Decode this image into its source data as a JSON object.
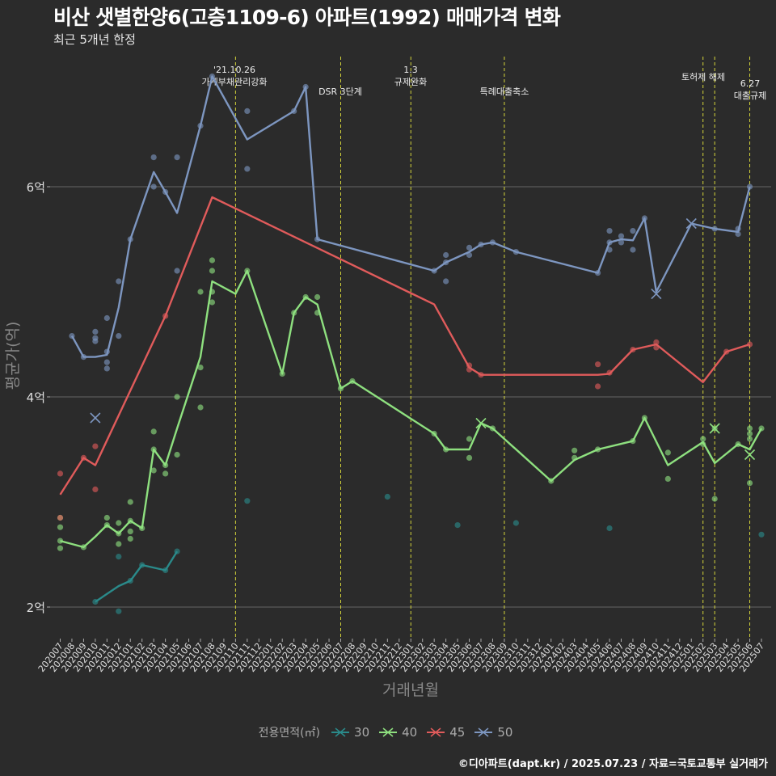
{
  "title": "비산 샛별한양6(고층1109-6) 아파트(1992) 매매가격 변화",
  "subtitle": "최근 5개년 한정",
  "caption": "©디아파트(dapt.kr) / 2025.07.23 / 자료=국토교통부 실거래가",
  "chart_data": {
    "type": "line",
    "xlabel": "거래년월",
    "ylabel": "평균가(억)",
    "ylim": [
      1.7,
      7.3
    ],
    "yticks": [
      2,
      4,
      6
    ],
    "ytick_labels": [
      "2억",
      "4억",
      "6억"
    ],
    "grid": true,
    "legend_title": "전용면적(㎡)",
    "legend_position": "bottom",
    "x": [
      "202007",
      "202008",
      "202009",
      "202010",
      "202011",
      "202012",
      "202101",
      "202102",
      "202103",
      "202104",
      "202105",
      "202106",
      "202107",
      "202108",
      "202109",
      "202110",
      "202111",
      "202112",
      "202201",
      "202202",
      "202203",
      "202204",
      "202205",
      "202206",
      "202207",
      "202208",
      "202209",
      "202210",
      "202211",
      "202212",
      "202301",
      "202302",
      "202303",
      "202304",
      "202305",
      "202306",
      "202307",
      "202308",
      "202309",
      "202310",
      "202311",
      "202312",
      "202401",
      "202402",
      "202403",
      "202404",
      "202405",
      "202406",
      "202407",
      "202408",
      "202409",
      "202410",
      "202411",
      "202412",
      "202501",
      "202502",
      "202503",
      "202504",
      "202505",
      "202506",
      "202507"
    ],
    "events": [
      {
        "x": "202110",
        "label": "'21.10.26\n가계부채관리강화"
      },
      {
        "x": "202207",
        "label": "DSR 3단계"
      },
      {
        "x": "202301",
        "label": "1.3\n규제완화"
      },
      {
        "x": "202309",
        "label": "특례대출축소"
      },
      {
        "x": "202502",
        "label": "토허제 해제"
      },
      {
        "x": "202503",
        "label": ""
      },
      {
        "x": "202506",
        "label": "6.27\n대출규제"
      }
    ],
    "series": [
      {
        "name": "30",
        "color": "#2a8a8a",
        "line": [
          [
            "202010",
            2.05
          ],
          [
            "202012",
            2.2
          ],
          [
            "202101",
            2.25
          ],
          [
            "202102",
            2.4
          ],
          [
            "202104",
            2.35
          ],
          [
            "202105",
            2.53
          ]
        ],
        "points": [
          [
            "202010",
            2.05
          ],
          [
            "202012",
            1.96
          ],
          [
            "202012",
            2.48
          ],
          [
            "202101",
            2.25
          ],
          [
            "202102",
            2.4
          ],
          [
            "202104",
            2.35
          ],
          [
            "202105",
            2.53
          ],
          [
            "202111",
            3.01
          ],
          [
            "202211",
            3.05
          ],
          [
            "202305",
            2.78
          ],
          [
            "202310",
            2.8
          ],
          [
            "202406",
            2.75
          ],
          [
            "202507",
            2.69
          ]
        ],
        "crosses": []
      },
      {
        "name": "40",
        "color": "#8ee07f",
        "line": [
          [
            "202007",
            2.63
          ],
          [
            "202009",
            2.57
          ],
          [
            "202010",
            2.67
          ],
          [
            "202011",
            2.78
          ],
          [
            "202012",
            2.7
          ],
          [
            "202101",
            2.82
          ],
          [
            "202102",
            2.75
          ],
          [
            "202103",
            3.5
          ],
          [
            "202104",
            3.35
          ],
          [
            "202105",
            3.7
          ],
          [
            "202107",
            4.38
          ],
          [
            "202108",
            5.1
          ],
          [
            "202110",
            4.98
          ],
          [
            "202111",
            5.2
          ],
          [
            "202202",
            4.22
          ],
          [
            "202203",
            4.8
          ],
          [
            "202204",
            4.95
          ],
          [
            "202205",
            4.88
          ],
          [
            "202207",
            4.08
          ],
          [
            "202208",
            4.15
          ],
          [
            "202303",
            3.65
          ],
          [
            "202304",
            3.5
          ],
          [
            "202306",
            3.5
          ],
          [
            "202307",
            3.75
          ],
          [
            "202308",
            3.7
          ],
          [
            "202401",
            3.2
          ],
          [
            "202403",
            3.4
          ],
          [
            "202405",
            3.5
          ],
          [
            "202408",
            3.58
          ],
          [
            "202409",
            3.8
          ],
          [
            "202411",
            3.35
          ],
          [
            "202502",
            3.57
          ],
          [
            "202503",
            3.37
          ],
          [
            "202505",
            3.55
          ],
          [
            "202506",
            3.5
          ],
          [
            "202507",
            3.7
          ]
        ],
        "points": [
          [
            "202007",
            2.85
          ],
          [
            "202007",
            2.76
          ],
          [
            "202007",
            2.63
          ],
          [
            "202007",
            2.56
          ],
          [
            "202009",
            2.57
          ],
          [
            "202011",
            2.85
          ],
          [
            "202011",
            2.78
          ],
          [
            "202012",
            2.8
          ],
          [
            "202012",
            2.7
          ],
          [
            "202012",
            2.6
          ],
          [
            "202101",
            3.0
          ],
          [
            "202101",
            2.82
          ],
          [
            "202101",
            2.72
          ],
          [
            "202101",
            2.65
          ],
          [
            "202102",
            2.75
          ],
          [
            "202103",
            3.67
          ],
          [
            "202103",
            3.5
          ],
          [
            "202103",
            3.3
          ],
          [
            "202104",
            3.35
          ],
          [
            "202104",
            3.27
          ],
          [
            "202105",
            4.0
          ],
          [
            "202105",
            3.45
          ],
          [
            "202107",
            5.0
          ],
          [
            "202107",
            4.28
          ],
          [
            "202107",
            3.9
          ],
          [
            "202108",
            5.3
          ],
          [
            "202108",
            5.2
          ],
          [
            "202108",
            5.0
          ],
          [
            "202108",
            4.9
          ],
          [
            "202111",
            5.2
          ],
          [
            "202202",
            4.22
          ],
          [
            "202203",
            4.8
          ],
          [
            "202204",
            4.95
          ],
          [
            "202205",
            4.95
          ],
          [
            "202205",
            4.8
          ],
          [
            "202207",
            4.08
          ],
          [
            "202208",
            4.15
          ],
          [
            "202303",
            3.65
          ],
          [
            "202304",
            3.5
          ],
          [
            "202306",
            3.6
          ],
          [
            "202306",
            3.42
          ],
          [
            "202308",
            3.7
          ],
          [
            "202401",
            3.2
          ],
          [
            "202403",
            3.42
          ],
          [
            "202403",
            3.49
          ],
          [
            "202405",
            3.5
          ],
          [
            "202408",
            3.58
          ],
          [
            "202409",
            3.8
          ],
          [
            "202411",
            3.47
          ],
          [
            "202411",
            3.22
          ],
          [
            "202502",
            3.6
          ],
          [
            "202502",
            3.55
          ],
          [
            "202503",
            3.7
          ],
          [
            "202503",
            3.03
          ],
          [
            "202505",
            3.55
          ],
          [
            "202506",
            3.7
          ],
          [
            "202506",
            3.65
          ],
          [
            "202506",
            3.6
          ],
          [
            "202506",
            3.18
          ],
          [
            "202507",
            3.7
          ]
        ],
        "crosses": [
          [
            "202307",
            3.75
          ],
          [
            "202503",
            3.7
          ],
          [
            "202506",
            3.45
          ]
        ]
      },
      {
        "name": "45",
        "color": "#e05b5b",
        "line": [
          [
            "202007",
            3.07
          ],
          [
            "202009",
            3.42
          ],
          [
            "202010",
            3.35
          ],
          [
            "202104",
            4.77
          ],
          [
            "202108",
            5.9
          ],
          [
            "202303",
            4.88
          ],
          [
            "202306",
            4.28
          ],
          [
            "202307",
            4.21
          ],
          [
            "202405",
            4.21
          ],
          [
            "202406",
            4.22
          ],
          [
            "202408",
            4.45
          ],
          [
            "202410",
            4.5
          ],
          [
            "202502",
            4.14
          ],
          [
            "202504",
            4.43
          ],
          [
            "202506",
            4.5
          ]
        ],
        "points": [
          [
            "202007",
            3.27
          ],
          [
            "202007",
            2.85
          ],
          [
            "202009",
            3.42
          ],
          [
            "202010",
            3.53
          ],
          [
            "202010",
            3.12
          ],
          [
            "202104",
            4.77
          ],
          [
            "202306",
            4.3
          ],
          [
            "202306",
            4.26
          ],
          [
            "202307",
            4.21
          ],
          [
            "202405",
            4.31
          ],
          [
            "202405",
            4.1
          ],
          [
            "202406",
            4.23
          ],
          [
            "202408",
            4.45
          ],
          [
            "202410",
            4.52
          ],
          [
            "202410",
            4.47
          ],
          [
            "202504",
            4.43
          ],
          [
            "202506",
            4.5
          ]
        ],
        "crosses": []
      },
      {
        "name": "50",
        "color": "#7d96c0",
        "line": [
          [
            "202008",
            4.58
          ],
          [
            "202009",
            4.38
          ],
          [
            "202010",
            4.38
          ],
          [
            "202011",
            4.4
          ],
          [
            "202012",
            4.85
          ],
          [
            "202101",
            5.5
          ],
          [
            "202103",
            6.14
          ],
          [
            "202104",
            5.95
          ],
          [
            "202105",
            5.75
          ],
          [
            "202107",
            6.58
          ],
          [
            "202108",
            7.05
          ],
          [
            "202111",
            6.45
          ],
          [
            "202203",
            6.72
          ],
          [
            "202204",
            6.95
          ],
          [
            "202205",
            5.5
          ],
          [
            "202303",
            5.2
          ],
          [
            "202304",
            5.28
          ],
          [
            "202306",
            5.38
          ],
          [
            "202307",
            5.45
          ],
          [
            "202308",
            5.47
          ],
          [
            "202310",
            5.38
          ],
          [
            "202405",
            5.18
          ],
          [
            "202406",
            5.47
          ],
          [
            "202407",
            5.5
          ],
          [
            "202408",
            5.49
          ],
          [
            "202409",
            5.7
          ],
          [
            "202410",
            5.0
          ],
          [
            "202501",
            5.65
          ],
          [
            "202503",
            5.6
          ],
          [
            "202505",
            5.57
          ],
          [
            "202506",
            6.0
          ]
        ],
        "points": [
          [
            "202008",
            4.58
          ],
          [
            "202009",
            4.38
          ],
          [
            "202010",
            4.62
          ],
          [
            "202010",
            4.56
          ],
          [
            "202010",
            4.53
          ],
          [
            "202011",
            4.75
          ],
          [
            "202011",
            4.43
          ],
          [
            "202011",
            4.33
          ],
          [
            "202011",
            4.27
          ],
          [
            "202012",
            5.1
          ],
          [
            "202012",
            4.58
          ],
          [
            "202101",
            5.5
          ],
          [
            "202103",
            6.28
          ],
          [
            "202103",
            6.0
          ],
          [
            "202104",
            5.95
          ],
          [
            "202105",
            6.28
          ],
          [
            "202105",
            5.2
          ],
          [
            "202107",
            6.58
          ],
          [
            "202108",
            7.05
          ],
          [
            "202111",
            6.72
          ],
          [
            "202111",
            6.17
          ],
          [
            "202203",
            6.72
          ],
          [
            "202204",
            6.95
          ],
          [
            "202205",
            5.5
          ],
          [
            "202303",
            5.2
          ],
          [
            "202304",
            5.35
          ],
          [
            "202304",
            5.28
          ],
          [
            "202304",
            5.1
          ],
          [
            "202306",
            5.42
          ],
          [
            "202306",
            5.35
          ],
          [
            "202307",
            5.45
          ],
          [
            "202308",
            5.47
          ],
          [
            "202310",
            5.38
          ],
          [
            "202405",
            5.18
          ],
          [
            "202406",
            5.58
          ],
          [
            "202406",
            5.47
          ],
          [
            "202406",
            5.4
          ],
          [
            "202407",
            5.53
          ],
          [
            "202407",
            5.47
          ],
          [
            "202408",
            5.58
          ],
          [
            "202408",
            5.4
          ],
          [
            "202409",
            5.7
          ],
          [
            "202503",
            5.6
          ],
          [
            "202505",
            5.6
          ],
          [
            "202505",
            5.55
          ],
          [
            "202506",
            6.0
          ]
        ],
        "crosses": [
          [
            "202010",
            3.8
          ],
          [
            "202410",
            4.98
          ],
          [
            "202501",
            5.65
          ]
        ]
      }
    ]
  }
}
